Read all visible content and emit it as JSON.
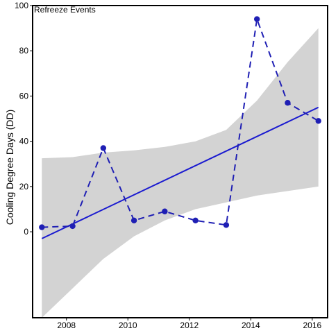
{
  "chart_data": {
    "type": "line",
    "title": "Refreeze Events",
    "xlabel": "",
    "ylabel": "Cooling Degree Days (DD)",
    "xlim": [
      2006.9,
      2016.5
    ],
    "ylim": [
      -38,
      100
    ],
    "x_ticks": [
      2008,
      2010,
      2012,
      2014,
      2016
    ],
    "x_tick_labels": [
      "2008",
      "2010",
      "2012",
      "2014",
      "2016"
    ],
    "y_ticks": [
      0,
      20,
      40,
      60,
      80,
      100
    ],
    "y_tick_labels": [
      "0",
      "20",
      "40",
      "60",
      "80",
      "100"
    ],
    "grid": false,
    "series": [
      {
        "style": "dashed-points",
        "color": "#1f1fb4",
        "x": [
          2007.2,
          2008.2,
          2009.2,
          2010.2,
          2011.2,
          2012.2,
          2013.2,
          2014.2,
          2015.2,
          2016.2
        ],
        "y": [
          2,
          2.5,
          37,
          5,
          9,
          5,
          3,
          94,
          57,
          49
        ]
      }
    ],
    "trend": {
      "style": "solid",
      "color": "#1a1ad0",
      "x": [
        2007.2,
        2016.2
      ],
      "y": [
        -3,
        55
      ]
    },
    "confidence_band": {
      "color": "#d3d3d3",
      "x": [
        2007.2,
        2008.2,
        2009.2,
        2010.2,
        2011.2,
        2012.2,
        2013.2,
        2014.2,
        2015.2,
        2016.2
      ],
      "upper": [
        32.5,
        33,
        35,
        36,
        37.5,
        40,
        45,
        58,
        75,
        90
      ],
      "lower": [
        -38,
        -25,
        -12,
        -2,
        5,
        10,
        13,
        16,
        18,
        20
      ]
    }
  }
}
